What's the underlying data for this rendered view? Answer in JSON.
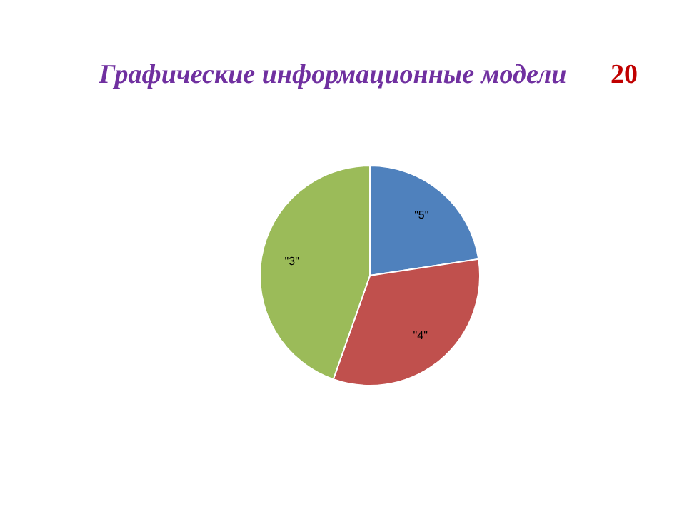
{
  "chart_data": {
    "type": "pie",
    "title": "Графические информационные модели",
    "annotations": [
      "20"
    ],
    "categories": [
      "\"5\"",
      "\"4\"",
      "\"3\""
    ],
    "values": [
      22.6,
      32.8,
      44.6
    ],
    "colors": [
      "#4f81bd",
      "#c0504d",
      "#9bbb59"
    ]
  }
}
